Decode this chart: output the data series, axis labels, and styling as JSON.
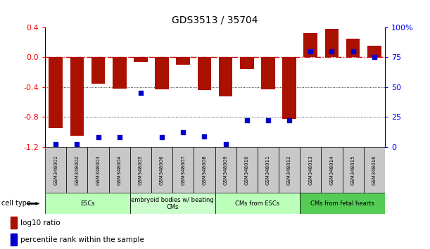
{
  "title": "GDS3513 / 35704",
  "samples": [
    "GSM348001",
    "GSM348002",
    "GSM348003",
    "GSM348004",
    "GSM348005",
    "GSM348006",
    "GSM348007",
    "GSM348008",
    "GSM348009",
    "GSM348010",
    "GSM348011",
    "GSM348012",
    "GSM348013",
    "GSM348014",
    "GSM348015",
    "GSM348016"
  ],
  "log10_ratio": [
    -0.95,
    -1.05,
    -0.35,
    -0.42,
    -0.06,
    -0.43,
    -0.1,
    -0.44,
    -0.52,
    -0.16,
    -0.43,
    -0.82,
    0.32,
    0.38,
    0.25,
    0.15
  ],
  "percentile_rank": [
    2,
    2,
    8,
    8,
    45,
    8,
    12,
    9,
    2,
    22,
    22,
    22,
    80,
    80,
    80,
    75
  ],
  "cell_types": [
    {
      "label": "ESCs",
      "start": 0,
      "end": 4,
      "color": "#bbffbb"
    },
    {
      "label": "embryoid bodies w/ beating\nCMs",
      "start": 4,
      "end": 8,
      "color": "#ccffcc"
    },
    {
      "label": "CMs from ESCs",
      "start": 8,
      "end": 12,
      "color": "#bbffbb"
    },
    {
      "label": "CMs from fetal hearts",
      "start": 12,
      "end": 16,
      "color": "#55cc55"
    }
  ],
  "bar_color": "#aa1100",
  "dot_color": "#0000cc",
  "dashed_line_color": "#cc0000",
  "left_ylim": [
    -1.2,
    0.4
  ],
  "right_ylim": [
    0,
    100
  ],
  "left_yticks": [
    -1.2,
    -0.8,
    -0.4,
    0.0,
    0.4
  ],
  "right_yticks": [
    0,
    25,
    50,
    75,
    100
  ],
  "right_yticklabels": [
    "0",
    "25",
    "50",
    "75",
    "100%"
  ],
  "legend_label_ratio": "log10 ratio",
  "legend_label_pct": "percentile rank within the sample",
  "cell_type_label": "cell type"
}
